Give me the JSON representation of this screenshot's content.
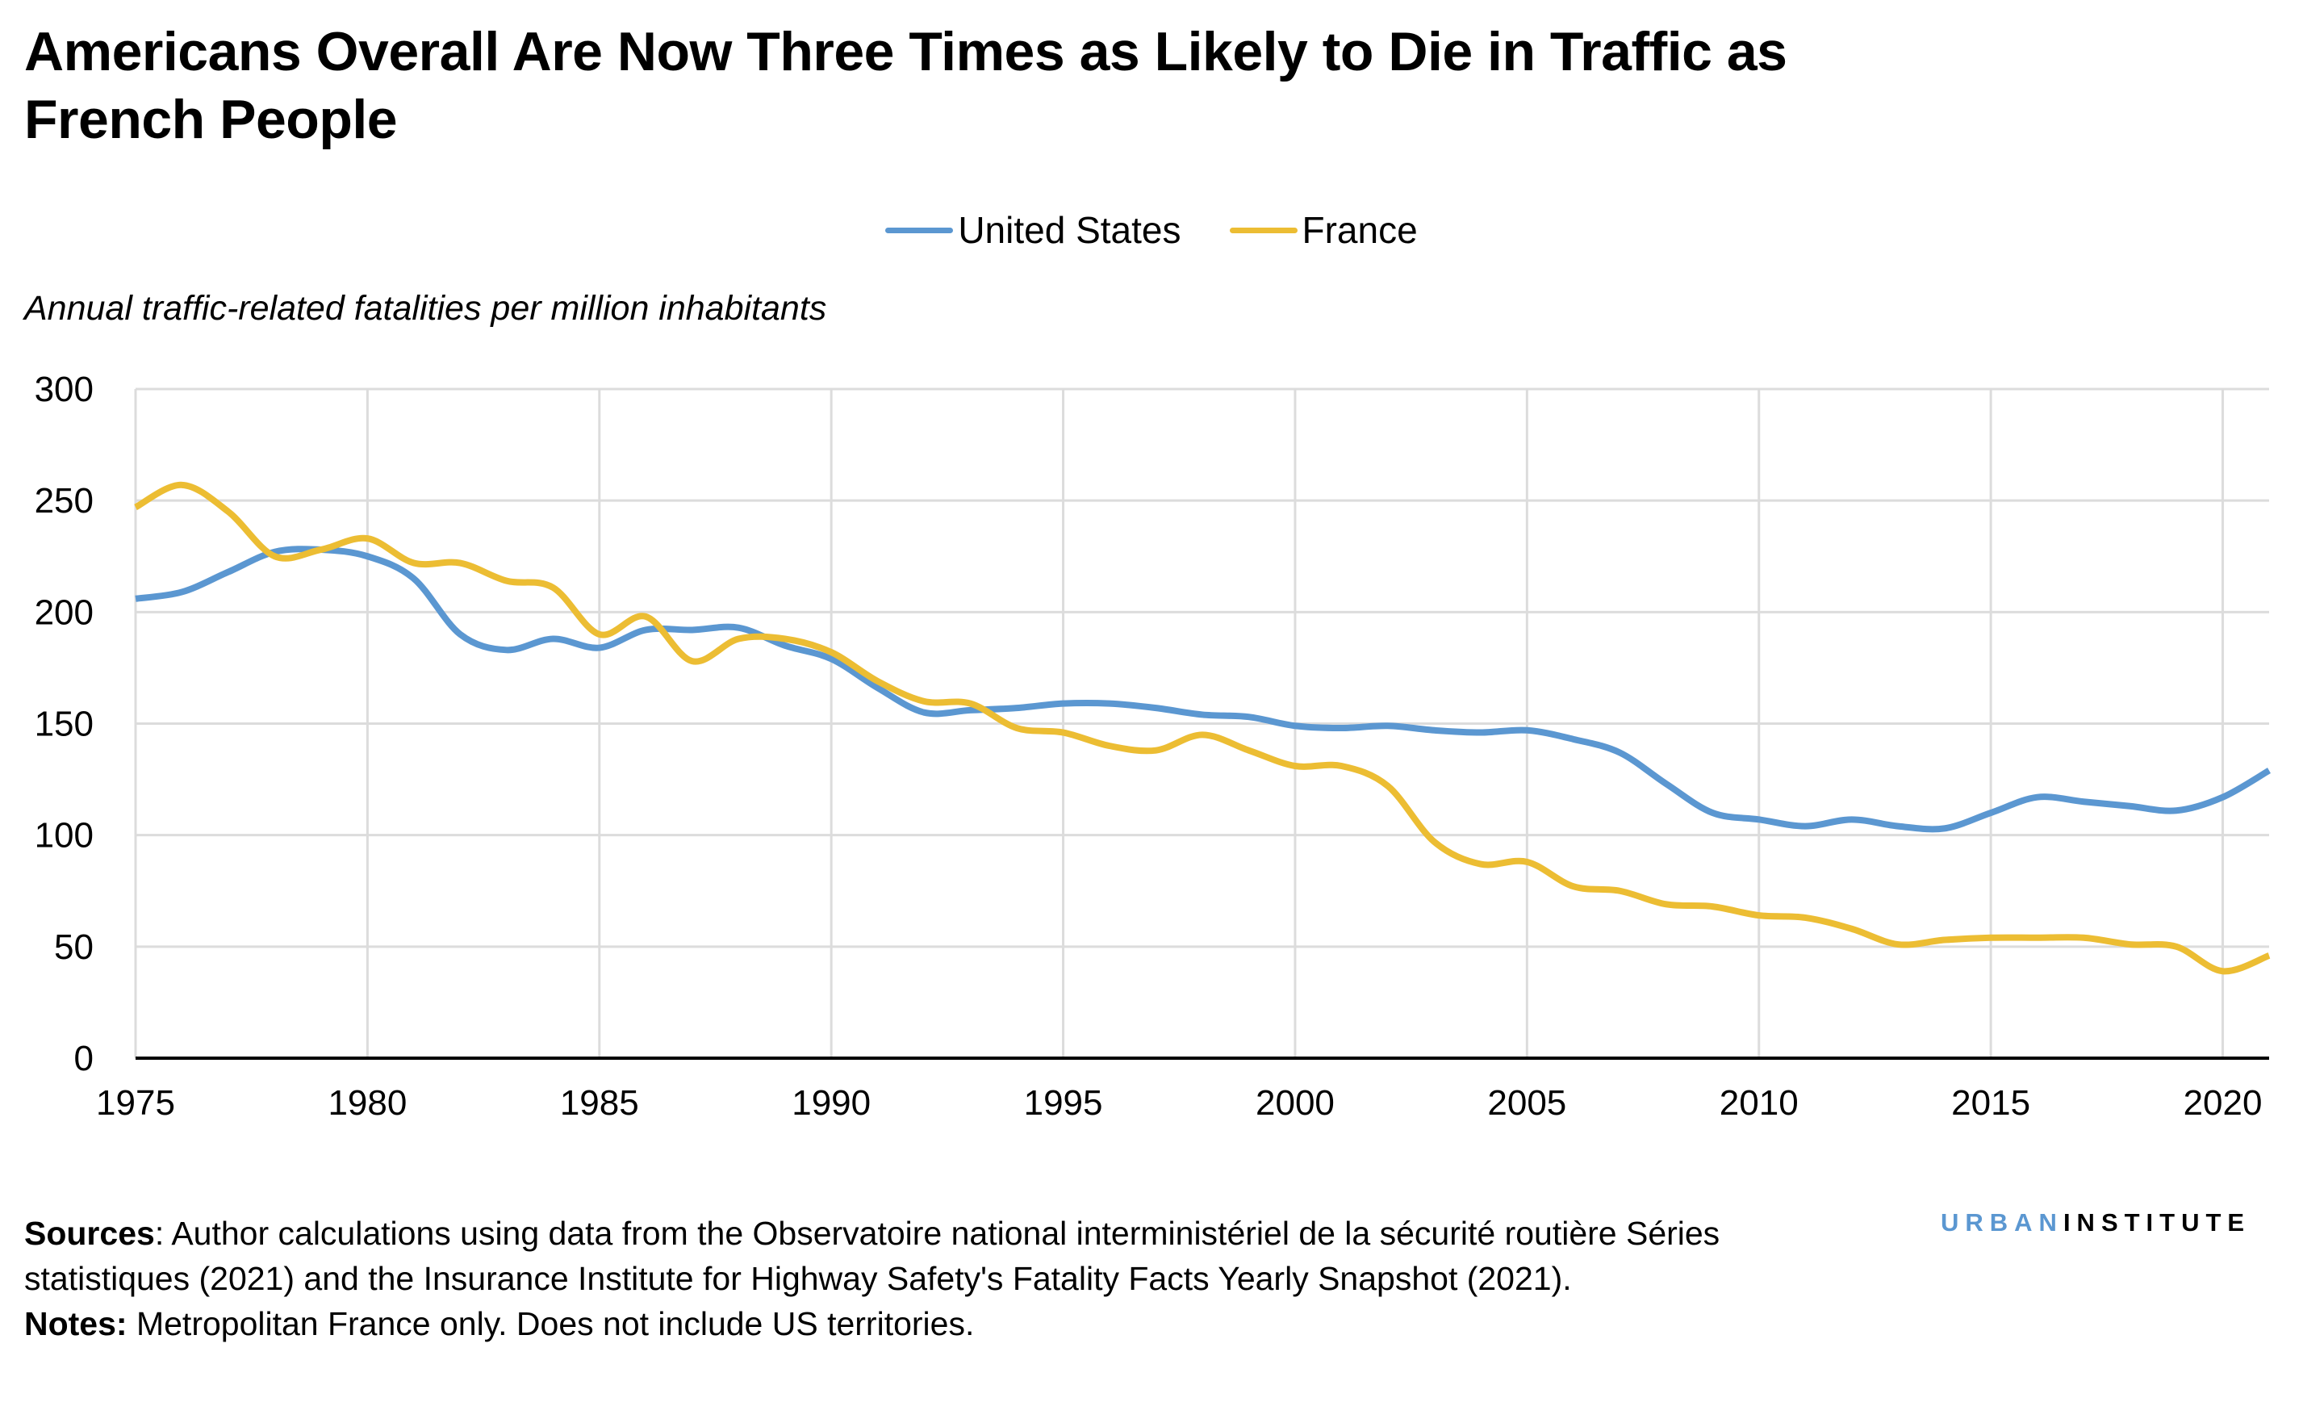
{
  "title": "Americans Overall Are Now Three Times as Likely to Die in Traffic as French People",
  "subtitle": "Annual traffic-related fatalities per million inhabitants",
  "footer": {
    "sources_label": "Sources",
    "sources_text": ": Author calculations using data from the Observatoire national interministériel de la sécurité routière Séries statistiques (2021) and the Insurance Institute for Highway Safety's Fatality Facts Yearly Snapshot (2021).",
    "notes_label": "Notes:",
    "notes_text": " Metropolitan France only. Does not include US territories."
  },
  "logo": {
    "part1": "URBAN",
    "part2": "INSTITUTE"
  },
  "chart_data": {
    "type": "line",
    "title": "Americans Overall Are Now Three Times as Likely to Die in Traffic as French People",
    "ylabel": "Annual traffic-related fatalities per million inhabitants",
    "xlabel": "",
    "xlim": [
      1975,
      2021
    ],
    "ylim": [
      0,
      300
    ],
    "x_ticks": [
      1975,
      1980,
      1985,
      1990,
      1995,
      2000,
      2005,
      2010,
      2015,
      2020
    ],
    "y_ticks": [
      0,
      50,
      100,
      150,
      200,
      250,
      300
    ],
    "grid": true,
    "legend_position": "top-center",
    "x": [
      1975,
      1976,
      1977,
      1978,
      1979,
      1980,
      1981,
      1982,
      1983,
      1984,
      1985,
      1986,
      1987,
      1988,
      1989,
      1990,
      1991,
      1992,
      1993,
      1994,
      1995,
      1996,
      1997,
      1998,
      1999,
      2000,
      2001,
      2002,
      2003,
      2004,
      2005,
      2006,
      2007,
      2008,
      2009,
      2010,
      2011,
      2012,
      2013,
      2014,
      2015,
      2016,
      2017,
      2018,
      2019,
      2020,
      2021
    ],
    "series": [
      {
        "name": "United States",
        "color": "#5b97d1",
        "values": [
          206,
          209,
          218,
          227,
          228,
          225,
          215,
          190,
          183,
          188,
          184,
          192,
          192,
          193,
          185,
          179,
          166,
          155,
          156,
          157,
          159,
          159,
          157,
          154,
          153,
          149,
          148,
          149,
          147,
          146,
          147,
          143,
          137,
          123,
          110,
          107,
          104,
          107,
          104,
          103,
          110,
          117,
          115,
          113,
          111,
          117,
          129
        ]
      },
      {
        "name": "France",
        "color": "#ecbd33",
        "values": [
          247,
          257,
          245,
          225,
          228,
          233,
          222,
          222,
          214,
          211,
          190,
          198,
          178,
          188,
          188,
          182,
          169,
          160,
          159,
          148,
          146,
          140,
          138,
          145,
          138,
          131,
          131,
          122,
          97,
          87,
          88,
          77,
          75,
          69,
          68,
          64,
          63,
          58,
          51,
          53,
          54,
          54,
          54,
          51,
          50,
          39,
          46
        ]
      }
    ]
  }
}
